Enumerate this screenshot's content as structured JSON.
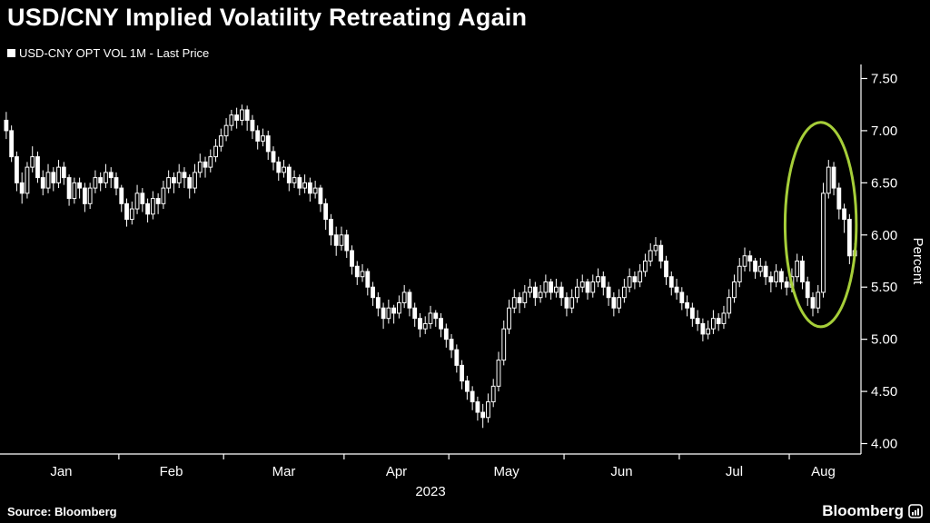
{
  "header": {
    "title": "USD/CNY Implied Volatility Retreating Again"
  },
  "legend": {
    "label": "USD-CNY OPT VOL 1M - Last Price",
    "swatch_color": "#ffffff"
  },
  "footer": {
    "source": "Source: Bloomberg",
    "logo_text": "Bloomberg"
  },
  "chart_data": {
    "type": "candlestick",
    "title": "USD/CNY Implied Volatility Retreating Again",
    "series_name": "USD-CNY OPT VOL 1M - Last Price",
    "xlabel": "2023",
    "ylabel": "Percent",
    "ylim": [
      3.9,
      7.6
    ],
    "grid": false,
    "legend_position": "top-left",
    "background": "#000000",
    "candle_color": "#ffffff",
    "axis_color": "#ffffff",
    "y_ticks": [
      4.0,
      4.5,
      5.0,
      5.5,
      6.0,
      6.5,
      7.0,
      7.5
    ],
    "y_tick_labels": [
      "4.00",
      "4.50",
      "5.00",
      "5.50",
      "6.00",
      "6.50",
      "7.00",
      "7.50"
    ],
    "x_year_label": "2023",
    "months": [
      {
        "label": "Jan",
        "start": 0
      },
      {
        "label": "Feb",
        "start": 22
      },
      {
        "label": "Mar",
        "start": 42
      },
      {
        "label": "Apr",
        "start": 65
      },
      {
        "label": "May",
        "start": 85
      },
      {
        "label": "Jun",
        "start": 107
      },
      {
        "label": "Jul",
        "start": 129
      },
      {
        "label": "Aug",
        "start": 150
      }
    ],
    "annotation": {
      "type": "ellipse",
      "label": "recent-spike-retreat-highlight",
      "color": "#a6ce39",
      "center_index": 155.5,
      "center_value": 6.1,
      "rx_candles": 6.8,
      "ry_value": 0.98,
      "stroke_width": 3
    },
    "candles_ohlc": [
      [
        7.1,
        7.18,
        6.92,
        7.0
      ],
      [
        7.0,
        7.05,
        6.7,
        6.75
      ],
      [
        6.75,
        6.8,
        6.42,
        6.5
      ],
      [
        6.5,
        6.6,
        6.3,
        6.4
      ],
      [
        6.4,
        6.7,
        6.35,
        6.65
      ],
      [
        6.65,
        6.85,
        6.6,
        6.75
      ],
      [
        6.75,
        6.8,
        6.5,
        6.55
      ],
      [
        6.55,
        6.62,
        6.38,
        6.45
      ],
      [
        6.45,
        6.68,
        6.4,
        6.6
      ],
      [
        6.6,
        6.65,
        6.42,
        6.5
      ],
      [
        6.5,
        6.72,
        6.45,
        6.65
      ],
      [
        6.65,
        6.7,
        6.48,
        6.55
      ],
      [
        6.55,
        6.58,
        6.28,
        6.35
      ],
      [
        6.35,
        6.55,
        6.3,
        6.5
      ],
      [
        6.5,
        6.55,
        6.35,
        6.45
      ],
      [
        6.45,
        6.5,
        6.22,
        6.3
      ],
      [
        6.3,
        6.5,
        6.25,
        6.45
      ],
      [
        6.45,
        6.62,
        6.4,
        6.55
      ],
      [
        6.55,
        6.6,
        6.42,
        6.5
      ],
      [
        6.5,
        6.68,
        6.45,
        6.6
      ],
      [
        6.6,
        6.65,
        6.45,
        6.55
      ],
      [
        6.55,
        6.6,
        6.38,
        6.45
      ],
      [
        6.45,
        6.48,
        6.22,
        6.3
      ],
      [
        6.3,
        6.35,
        6.08,
        6.15
      ],
      [
        6.15,
        6.32,
        6.1,
        6.25
      ],
      [
        6.25,
        6.48,
        6.2,
        6.4
      ],
      [
        6.4,
        6.45,
        6.22,
        6.3
      ],
      [
        6.3,
        6.35,
        6.12,
        6.2
      ],
      [
        6.2,
        6.42,
        6.15,
        6.35
      ],
      [
        6.35,
        6.4,
        6.2,
        6.3
      ],
      [
        6.3,
        6.52,
        6.25,
        6.45
      ],
      [
        6.45,
        6.62,
        6.4,
        6.55
      ],
      [
        6.55,
        6.6,
        6.4,
        6.5
      ],
      [
        6.5,
        6.68,
        6.45,
        6.6
      ],
      [
        6.6,
        6.65,
        6.45,
        6.55
      ],
      [
        6.55,
        6.58,
        6.35,
        6.45
      ],
      [
        6.45,
        6.68,
        6.4,
        6.6
      ],
      [
        6.6,
        6.78,
        6.55,
        6.7
      ],
      [
        6.7,
        6.75,
        6.55,
        6.65
      ],
      [
        6.65,
        6.82,
        6.6,
        6.75
      ],
      [
        6.75,
        6.92,
        6.7,
        6.85
      ],
      [
        6.85,
        7.02,
        6.8,
        6.95
      ],
      [
        6.95,
        7.12,
        6.9,
        7.05
      ],
      [
        7.05,
        7.2,
        7.0,
        7.15
      ],
      [
        7.15,
        7.22,
        7.02,
        7.1
      ],
      [
        7.1,
        7.25,
        7.05,
        7.2
      ],
      [
        7.2,
        7.24,
        7.0,
        7.1
      ],
      [
        7.1,
        7.15,
        6.92,
        7.0
      ],
      [
        7.0,
        7.05,
        6.82,
        6.9
      ],
      [
        6.9,
        7.02,
        6.85,
        6.95
      ],
      [
        6.95,
        7.0,
        6.72,
        6.8
      ],
      [
        6.8,
        6.85,
        6.62,
        6.7
      ],
      [
        6.7,
        6.75,
        6.52,
        6.6
      ],
      [
        6.6,
        6.72,
        6.55,
        6.65
      ],
      [
        6.65,
        6.68,
        6.42,
        6.5
      ],
      [
        6.5,
        6.62,
        6.45,
        6.55
      ],
      [
        6.55,
        6.58,
        6.38,
        6.45
      ],
      [
        6.45,
        6.58,
        6.4,
        6.5
      ],
      [
        6.5,
        6.55,
        6.32,
        6.4
      ],
      [
        6.4,
        6.52,
        6.35,
        6.45
      ],
      [
        6.45,
        6.48,
        6.22,
        6.3
      ],
      [
        6.3,
        6.35,
        6.05,
        6.15
      ],
      [
        6.15,
        6.2,
        5.9,
        6.0
      ],
      [
        6.0,
        6.08,
        5.8,
        5.9
      ],
      [
        5.9,
        6.08,
        5.85,
        6.0
      ],
      [
        6.0,
        6.05,
        5.78,
        5.85
      ],
      [
        5.85,
        5.9,
        5.62,
        5.7
      ],
      [
        5.7,
        5.75,
        5.52,
        5.6
      ],
      [
        5.6,
        5.72,
        5.55,
        5.65
      ],
      [
        5.65,
        5.68,
        5.42,
        5.5
      ],
      [
        5.5,
        5.55,
        5.32,
        5.4
      ],
      [
        5.4,
        5.45,
        5.22,
        5.3
      ],
      [
        5.3,
        5.35,
        5.1,
        5.2
      ],
      [
        5.2,
        5.38,
        5.15,
        5.3
      ],
      [
        5.3,
        5.33,
        5.15,
        5.25
      ],
      [
        5.25,
        5.42,
        5.2,
        5.35
      ],
      [
        5.35,
        5.52,
        5.3,
        5.45
      ],
      [
        5.45,
        5.48,
        5.22,
        5.3
      ],
      [
        5.3,
        5.35,
        5.12,
        5.2
      ],
      [
        5.2,
        5.25,
        5.02,
        5.1
      ],
      [
        5.1,
        5.22,
        5.05,
        5.15
      ],
      [
        5.15,
        5.32,
        5.1,
        5.25
      ],
      [
        5.25,
        5.28,
        5.12,
        5.2
      ],
      [
        5.2,
        5.25,
        5.02,
        5.1
      ],
      [
        5.1,
        5.15,
        4.92,
        5.0
      ],
      [
        5.0,
        5.05,
        4.82,
        4.9
      ],
      [
        4.9,
        4.95,
        4.68,
        4.75
      ],
      [
        4.75,
        4.8,
        4.52,
        4.6
      ],
      [
        4.6,
        4.65,
        4.42,
        4.5
      ],
      [
        4.5,
        4.55,
        4.32,
        4.4
      ],
      [
        4.4,
        4.45,
        4.22,
        4.3
      ],
      [
        4.3,
        4.38,
        4.15,
        4.25
      ],
      [
        4.25,
        4.48,
        4.2,
        4.4
      ],
      [
        4.4,
        4.62,
        4.35,
        4.55
      ],
      [
        4.55,
        4.88,
        4.5,
        4.8
      ],
      [
        4.8,
        5.18,
        4.75,
        5.1
      ],
      [
        5.1,
        5.38,
        5.05,
        5.3
      ],
      [
        5.3,
        5.48,
        5.25,
        5.4
      ],
      [
        5.4,
        5.45,
        5.25,
        5.35
      ],
      [
        5.35,
        5.52,
        5.3,
        5.45
      ],
      [
        5.45,
        5.58,
        5.4,
        5.5
      ],
      [
        5.5,
        5.55,
        5.32,
        5.4
      ],
      [
        5.4,
        5.52,
        5.35,
        5.45
      ],
      [
        5.45,
        5.62,
        5.4,
        5.55
      ],
      [
        5.55,
        5.58,
        5.38,
        5.45
      ],
      [
        5.45,
        5.58,
        5.4,
        5.5
      ],
      [
        5.5,
        5.55,
        5.32,
        5.4
      ],
      [
        5.4,
        5.45,
        5.22,
        5.3
      ],
      [
        5.3,
        5.48,
        5.25,
        5.4
      ],
      [
        5.4,
        5.58,
        5.35,
        5.5
      ],
      [
        5.5,
        5.62,
        5.45,
        5.55
      ],
      [
        5.55,
        5.58,
        5.38,
        5.45
      ],
      [
        5.45,
        5.62,
        5.4,
        5.55
      ],
      [
        5.55,
        5.68,
        5.5,
        5.6
      ],
      [
        5.6,
        5.65,
        5.42,
        5.5
      ],
      [
        5.5,
        5.55,
        5.32,
        5.4
      ],
      [
        5.4,
        5.45,
        5.22,
        5.3
      ],
      [
        5.3,
        5.48,
        5.25,
        5.4
      ],
      [
        5.4,
        5.58,
        5.35,
        5.5
      ],
      [
        5.5,
        5.68,
        5.45,
        5.6
      ],
      [
        5.6,
        5.65,
        5.48,
        5.55
      ],
      [
        5.55,
        5.72,
        5.5,
        5.65
      ],
      [
        5.65,
        5.82,
        5.6,
        5.75
      ],
      [
        5.75,
        5.92,
        5.7,
        5.85
      ],
      [
        5.85,
        5.98,
        5.8,
        5.9
      ],
      [
        5.9,
        5.95,
        5.68,
        5.75
      ],
      [
        5.75,
        5.8,
        5.52,
        5.6
      ],
      [
        5.6,
        5.65,
        5.42,
        5.5
      ],
      [
        5.5,
        5.58,
        5.38,
        5.45
      ],
      [
        5.45,
        5.5,
        5.28,
        5.35
      ],
      [
        5.35,
        5.42,
        5.22,
        5.3
      ],
      [
        5.3,
        5.35,
        5.12,
        5.2
      ],
      [
        5.2,
        5.28,
        5.08,
        5.15
      ],
      [
        5.15,
        5.2,
        4.98,
        5.05
      ],
      [
        5.05,
        5.18,
        5.0,
        5.1
      ],
      [
        5.1,
        5.28,
        5.05,
        5.2
      ],
      [
        5.2,
        5.25,
        5.08,
        5.15
      ],
      [
        5.15,
        5.32,
        5.1,
        5.25
      ],
      [
        5.25,
        5.48,
        5.2,
        5.4
      ],
      [
        5.4,
        5.62,
        5.35,
        5.55
      ],
      [
        5.55,
        5.78,
        5.5,
        5.7
      ],
      [
        5.7,
        5.88,
        5.65,
        5.8
      ],
      [
        5.8,
        5.85,
        5.65,
        5.75
      ],
      [
        5.75,
        5.78,
        5.58,
        5.65
      ],
      [
        5.65,
        5.78,
        5.6,
        5.7
      ],
      [
        5.7,
        5.75,
        5.52,
        5.6
      ],
      [
        5.6,
        5.65,
        5.45,
        5.55
      ],
      [
        5.55,
        5.72,
        5.5,
        5.65
      ],
      [
        5.65,
        5.68,
        5.48,
        5.55
      ],
      [
        5.55,
        5.6,
        5.42,
        5.5
      ],
      [
        5.5,
        5.68,
        5.45,
        5.6
      ],
      [
        5.6,
        5.82,
        5.55,
        5.75
      ],
      [
        5.75,
        5.8,
        5.48,
        5.55
      ],
      [
        5.55,
        5.6,
        5.32,
        5.4
      ],
      [
        5.4,
        5.45,
        5.22,
        5.3
      ],
      [
        5.3,
        5.52,
        5.25,
        5.45
      ],
      [
        5.45,
        6.5,
        5.4,
        6.4
      ],
      [
        6.4,
        6.72,
        6.35,
        6.65
      ],
      [
        6.65,
        6.7,
        6.38,
        6.45
      ],
      [
        6.45,
        6.5,
        6.15,
        6.25
      ],
      [
        6.25,
        6.3,
        6.02,
        6.15
      ],
      [
        6.15,
        6.2,
        5.72,
        5.8
      ],
      [
        5.8,
        5.92,
        5.75,
        5.85
      ]
    ]
  }
}
